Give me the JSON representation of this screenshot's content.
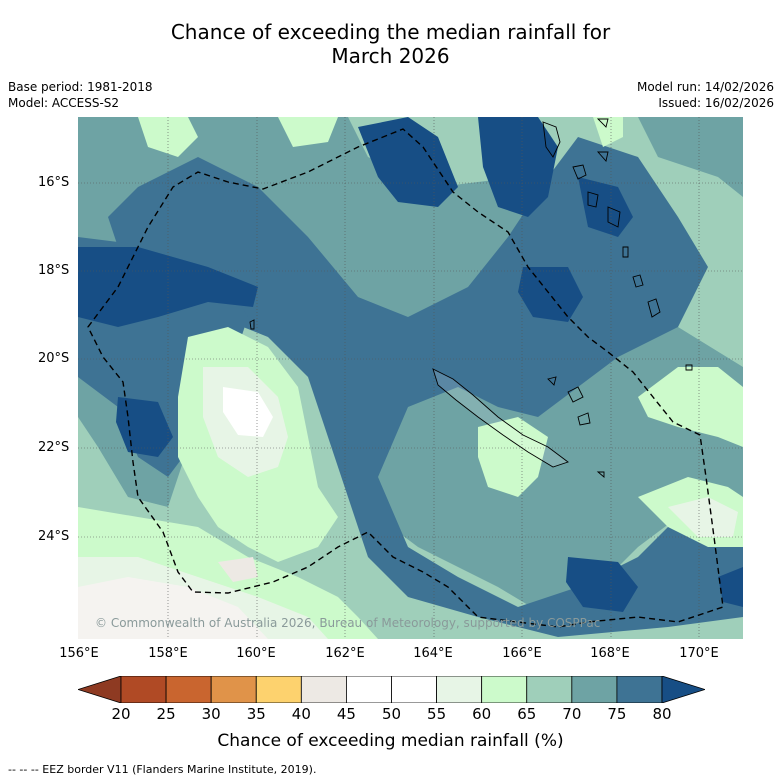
{
  "title_line1": "Chance of exceeding the median rainfall for",
  "title_line2": "March 2026",
  "meta": {
    "base_period": "Base period: 1981-2018",
    "model": "Model: ACCESS-S2",
    "model_run": "Model run: 14/02/2026",
    "issued": "Issued: 16/02/2026"
  },
  "map": {
    "lat_labels": [
      "16°S",
      "18°S",
      "20°S",
      "22°S",
      "24°S"
    ],
    "lon_labels": [
      "156°E",
      "158°E",
      "160°E",
      "162°E",
      "164°E",
      "166°E",
      "168°E",
      "170°E"
    ],
    "copyright": "© Commonwealth of Australia 2026, Bureau of Meteorology, supported by COSPPac"
  },
  "colorbar": {
    "ticks": [
      "20",
      "25",
      "30",
      "35",
      "40",
      "45",
      "50",
      "55",
      "60",
      "65",
      "70",
      "75",
      "80"
    ],
    "colors": [
      "#8e3a22",
      "#b04a25",
      "#c9652f",
      "#e09349",
      "#fdd26e",
      "#ede9e4",
      "#ffffff",
      "#ffffff",
      "#e7f5e6",
      "#ccfacb",
      "#9fcfba",
      "#6ea3a4",
      "#3e7394",
      "#174e85"
    ],
    "label": "Chance of exceeding median rainfall (%)"
  },
  "footnote": "--  --  -- EEZ border V11 (Flanders Marine Institute, 2019)."
}
